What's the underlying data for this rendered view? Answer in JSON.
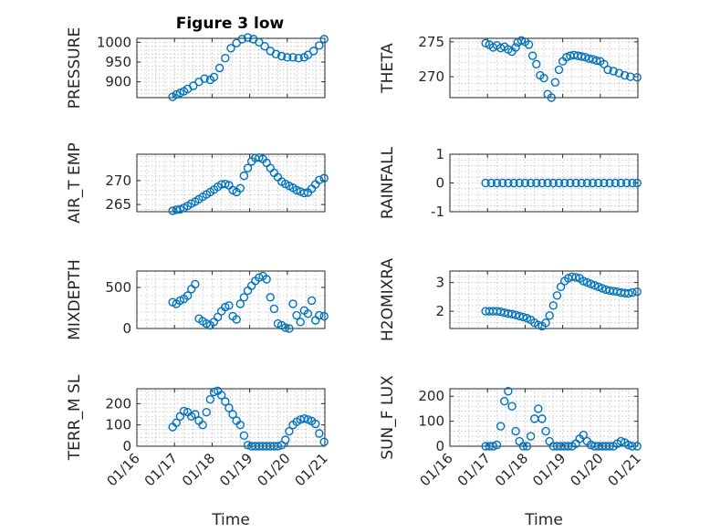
{
  "figure_title": "Figure 3 low",
  "colors": {
    "marker": "#0072BD",
    "axis": "#262626",
    "grid": "#bdbdbd"
  },
  "x_tick_labels": [
    "01/16",
    "01/17",
    "01/18",
    "01/19",
    "01/20",
    "01/21"
  ],
  "x_label": "Time",
  "chart_data": [
    {
      "type": "scatter",
      "name": "pressure",
      "ylabel": "PRESSURE",
      "title": "Figure 3 low",
      "ylim": [
        860,
        1010
      ],
      "yticks": [
        900,
        950,
        1000
      ],
      "xlim": [
        0,
        5
      ],
      "x": [
        0.95,
        1.05,
        1.15,
        1.25,
        1.35,
        1.5,
        1.65,
        1.8,
        1.95,
        2.05,
        2.2,
        2.35,
        2.5,
        2.65,
        2.8,
        2.95,
        3.1,
        3.25,
        3.4,
        3.55,
        3.7,
        3.85,
        4.0,
        4.15,
        4.3,
        4.45,
        4.55,
        4.7,
        4.85,
        4.98
      ],
      "y": [
        862,
        868,
        872,
        876,
        882,
        890,
        900,
        908,
        905,
        912,
        935,
        960,
        985,
        998,
        1008,
        1012,
        1008,
        1000,
        990,
        978,
        970,
        965,
        962,
        962,
        960,
        962,
        968,
        978,
        992,
        1008
      ]
    },
    {
      "type": "scatter",
      "name": "theta",
      "ylabel": "THETA",
      "title": "",
      "ylim": [
        267,
        275.5
      ],
      "yticks": [
        270,
        275
      ],
      "xlim": [
        0,
        5
      ],
      "x": [
        0.95,
        1.05,
        1.15,
        1.25,
        1.35,
        1.45,
        1.55,
        1.65,
        1.75,
        1.8,
        1.9,
        2.0,
        2.1,
        2.2,
        2.3,
        2.4,
        2.5,
        2.6,
        2.7,
        2.8,
        2.9,
        3.0,
        3.1,
        3.2,
        3.3,
        3.4,
        3.5,
        3.6,
        3.7,
        3.8,
        3.9,
        4.0,
        4.1,
        4.2,
        4.35,
        4.5,
        4.65,
        4.8,
        4.98
      ],
      "y": [
        274.8,
        274.6,
        274.2,
        274.5,
        274.1,
        274.3,
        273.9,
        273.6,
        274.2,
        274.9,
        275.2,
        275.0,
        274.6,
        273.0,
        271.8,
        270.2,
        269.8,
        267.5,
        267.0,
        269.2,
        271.0,
        272.2,
        272.8,
        273.0,
        273.1,
        273.0,
        272.9,
        272.8,
        272.6,
        272.5,
        272.3,
        272.2,
        271.8,
        271.0,
        270.8,
        270.5,
        270.2,
        270.0,
        269.9
      ]
    },
    {
      "type": "scatter",
      "name": "air_temp",
      "ylabel": "AIR_T EMP",
      "title": "",
      "ylim": [
        263.5,
        275.5
      ],
      "yticks": [
        265,
        270
      ],
      "xlim": [
        0,
        5
      ],
      "x": [
        0.95,
        1.05,
        1.15,
        1.25,
        1.35,
        1.45,
        1.55,
        1.65,
        1.75,
        1.85,
        1.95,
        2.05,
        2.15,
        2.25,
        2.35,
        2.45,
        2.55,
        2.65,
        2.75,
        2.85,
        2.95,
        3.05,
        3.15,
        3.25,
        3.35,
        3.45,
        3.55,
        3.65,
        3.75,
        3.85,
        3.95,
        4.05,
        4.15,
        4.25,
        4.35,
        4.45,
        4.55,
        4.65,
        4.75,
        4.85,
        4.98
      ],
      "y": [
        263.7,
        263.9,
        264.0,
        264.3,
        264.7,
        265.2,
        265.6,
        266.1,
        266.6,
        267.1,
        267.6,
        268.1,
        268.7,
        269.2,
        269.3,
        269.0,
        268.0,
        267.6,
        268.4,
        271.0,
        272.6,
        274.0,
        274.7,
        274.8,
        274.5,
        273.7,
        272.6,
        271.6,
        270.7,
        269.8,
        269.3,
        268.9,
        268.5,
        268.0,
        267.7,
        267.4,
        267.5,
        268.3,
        269.2,
        270.1,
        270.5
      ]
    },
    {
      "type": "scatter",
      "name": "rainfall",
      "ylabel": "RAINFALL",
      "title": "",
      "ylim": [
        -1,
        1
      ],
      "yticks": [
        -1,
        0,
        1
      ],
      "xlim": [
        0,
        5
      ],
      "x": [
        0.95,
        1.1,
        1.25,
        1.4,
        1.55,
        1.7,
        1.85,
        2.0,
        2.15,
        2.3,
        2.45,
        2.6,
        2.75,
        2.9,
        3.05,
        3.2,
        3.35,
        3.5,
        3.65,
        3.8,
        3.95,
        4.1,
        4.25,
        4.4,
        4.55,
        4.7,
        4.85,
        4.98
      ],
      "y": [
        0,
        0,
        0,
        0,
        0,
        0,
        0,
        0,
        0,
        0,
        0,
        0,
        0,
        0,
        0,
        0,
        0,
        0,
        0,
        0,
        0,
        0,
        0,
        0,
        0,
        0,
        0,
        0
      ]
    },
    {
      "type": "scatter",
      "name": "mixdepth",
      "ylabel": "MIXDEPTH",
      "title": "",
      "ylim": [
        0,
        700
      ],
      "yticks": [
        0,
        500
      ],
      "xlim": [
        0,
        5
      ],
      "x": [
        0.95,
        1.05,
        1.15,
        1.25,
        1.35,
        1.45,
        1.55,
        1.65,
        1.75,
        1.85,
        1.95,
        2.05,
        2.15,
        2.25,
        2.35,
        2.45,
        2.55,
        2.65,
        2.75,
        2.85,
        2.95,
        3.05,
        3.15,
        3.25,
        3.35,
        3.45,
        3.55,
        3.65,
        3.75,
        3.85,
        3.95,
        4.05,
        4.15,
        4.25,
        4.35,
        4.45,
        4.55,
        4.65,
        4.75,
        4.85,
        4.98
      ],
      "y": [
        320,
        300,
        340,
        360,
        400,
        480,
        540,
        120,
        90,
        60,
        40,
        80,
        140,
        210,
        260,
        280,
        150,
        110,
        300,
        380,
        460,
        520,
        580,
        620,
        640,
        600,
        380,
        240,
        60,
        40,
        10,
        0,
        300,
        160,
        80,
        220,
        180,
        340,
        100,
        160,
        150
      ]
    },
    {
      "type": "scatter",
      "name": "h2omixra",
      "ylabel": "H2OMIXRA",
      "title": "",
      "ylim": [
        1.4,
        3.4
      ],
      "yticks": [
        2,
        3
      ],
      "xlim": [
        0,
        5
      ],
      "x": [
        0.95,
        1.05,
        1.15,
        1.25,
        1.35,
        1.45,
        1.55,
        1.65,
        1.75,
        1.85,
        1.95,
        2.05,
        2.15,
        2.25,
        2.35,
        2.45,
        2.55,
        2.65,
        2.75,
        2.85,
        2.95,
        3.05,
        3.15,
        3.25,
        3.35,
        3.45,
        3.55,
        3.65,
        3.75,
        3.85,
        3.95,
        4.05,
        4.15,
        4.25,
        4.35,
        4.45,
        4.55,
        4.65,
        4.75,
        4.85,
        4.98
      ],
      "y": [
        2.0,
        2.0,
        2.0,
        2.0,
        1.98,
        1.95,
        1.92,
        1.9,
        1.87,
        1.83,
        1.8,
        1.76,
        1.7,
        1.6,
        1.52,
        1.48,
        1.6,
        1.85,
        2.2,
        2.55,
        2.85,
        3.05,
        3.15,
        3.2,
        3.18,
        3.15,
        3.05,
        3.0,
        2.95,
        2.9,
        2.85,
        2.8,
        2.75,
        2.72,
        2.7,
        2.68,
        2.65,
        2.63,
        2.62,
        2.65,
        2.68
      ]
    },
    {
      "type": "scatter",
      "name": "terr_msl",
      "ylabel": "TERR_M SL",
      "title": "",
      "ylim": [
        0,
        270
      ],
      "yticks": [
        0,
        100,
        200
      ],
      "xlim": [
        0,
        5
      ],
      "x": [
        0.95,
        1.05,
        1.15,
        1.25,
        1.35,
        1.45,
        1.55,
        1.65,
        1.75,
        1.85,
        1.95,
        2.05,
        2.15,
        2.25,
        2.35,
        2.45,
        2.55,
        2.65,
        2.75,
        2.85,
        2.95,
        3.05,
        3.15,
        3.25,
        3.35,
        3.45,
        3.55,
        3.65,
        3.75,
        3.85,
        3.95,
        4.05,
        4.15,
        4.25,
        4.35,
        4.45,
        4.55,
        4.65,
        4.75,
        4.85,
        4.98
      ],
      "y": [
        90,
        110,
        140,
        165,
        160,
        140,
        150,
        120,
        100,
        160,
        220,
        255,
        260,
        240,
        210,
        180,
        150,
        120,
        100,
        50,
        5,
        0,
        0,
        0,
        0,
        0,
        0,
        0,
        0,
        5,
        30,
        70,
        100,
        115,
        125,
        130,
        125,
        118,
        105,
        60,
        20
      ]
    },
    {
      "type": "scatter",
      "name": "sun_flux",
      "ylabel": "SUN_F LUX",
      "title": "",
      "ylim": [
        0,
        230
      ],
      "yticks": [
        0,
        100,
        200
      ],
      "xlim": [
        0,
        5
      ],
      "x": [
        0.95,
        1.05,
        1.15,
        1.25,
        1.35,
        1.45,
        1.55,
        1.65,
        1.75,
        1.85,
        1.95,
        2.05,
        2.15,
        2.25,
        2.35,
        2.45,
        2.55,
        2.65,
        2.75,
        2.85,
        2.95,
        3.05,
        3.15,
        3.25,
        3.35,
        3.45,
        3.55,
        3.65,
        3.75,
        3.85,
        3.95,
        4.05,
        4.15,
        4.25,
        4.35,
        4.45,
        4.55,
        4.65,
        4.75,
        4.85,
        4.98
      ],
      "y": [
        0,
        0,
        0,
        5,
        80,
        180,
        220,
        160,
        60,
        20,
        0,
        0,
        40,
        110,
        150,
        110,
        60,
        20,
        0,
        0,
        0,
        0,
        0,
        0,
        10,
        30,
        45,
        20,
        5,
        0,
        0,
        0,
        0,
        0,
        0,
        10,
        20,
        15,
        5,
        0,
        0
      ]
    }
  ]
}
